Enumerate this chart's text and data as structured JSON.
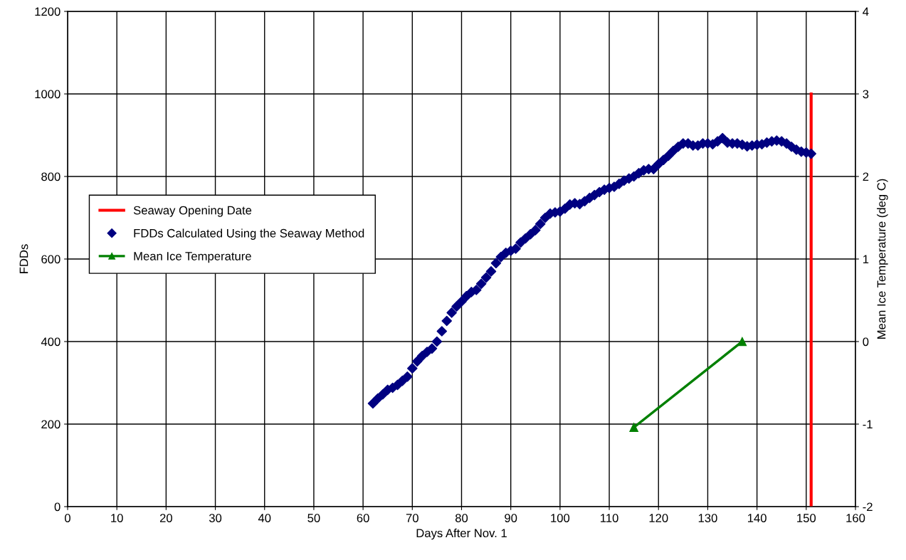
{
  "chart_data": {
    "type": "line",
    "xlabel": "Days After Nov. 1",
    "ylabel": "FDDs",
    "y2label": "Mean Ice Temperature (deg C)",
    "xlim": [
      0,
      160
    ],
    "xticks": [
      0,
      10,
      20,
      30,
      40,
      50,
      60,
      70,
      80,
      90,
      100,
      110,
      120,
      130,
      140,
      150,
      160
    ],
    "ylim": [
      0,
      1200
    ],
    "yticks": [
      0,
      200,
      400,
      600,
      800,
      1000,
      1200
    ],
    "y2lim": [
      -2,
      4
    ],
    "y2ticks": [
      {
        "value": -2,
        "label": "-2"
      },
      {
        "value": -1,
        "label": "-1"
      },
      0,
      1,
      2,
      3,
      4
    ],
    "grid": true,
    "legend": "left",
    "series": [
      {
        "name": "Seaway Opening Date",
        "color": "#ff0000",
        "marker": "none",
        "x": [
          151,
          151
        ],
        "values": [
          0,
          1000
        ]
      },
      {
        "name": "FDDs Calculated Using the Seaway Method",
        "type": "scatter",
        "color": "#000080",
        "marker": "diamond",
        "x": [
          62,
          63,
          64,
          65,
          66,
          67,
          68,
          69,
          70,
          71,
          72,
          73,
          74,
          75,
          76,
          77,
          78,
          79,
          80,
          81,
          82,
          83,
          84,
          85,
          86,
          87,
          88,
          89,
          90,
          91,
          92,
          93,
          94,
          95,
          96,
          97,
          98,
          99,
          100,
          101,
          102,
          103,
          104,
          105,
          106,
          107,
          108,
          109,
          110,
          111,
          112,
          113,
          114,
          115,
          116,
          117,
          118,
          119,
          120,
          121,
          122,
          123,
          124,
          125,
          126,
          127,
          128,
          129,
          130,
          131,
          132,
          133,
          134,
          135,
          136,
          137,
          138,
          139,
          140,
          141,
          142,
          143,
          144,
          145,
          146,
          147,
          148,
          149,
          150,
          151
        ],
        "values": [
          250,
          262,
          272,
          283,
          288,
          295,
          305,
          315,
          335,
          352,
          365,
          375,
          383,
          400,
          425,
          450,
          470,
          485,
          497,
          510,
          520,
          525,
          540,
          555,
          570,
          590,
          605,
          615,
          620,
          625,
          640,
          650,
          660,
          670,
          685,
          700,
          710,
          713,
          715,
          722,
          732,
          735,
          733,
          740,
          748,
          755,
          762,
          768,
          772,
          775,
          782,
          790,
          795,
          800,
          808,
          815,
          818,
          818,
          830,
          840,
          850,
          862,
          872,
          880,
          880,
          875,
          875,
          880,
          880,
          878,
          885,
          893,
          882,
          880,
          880,
          877,
          873,
          875,
          877,
          878,
          882,
          885,
          887,
          885,
          880,
          872,
          865,
          860,
          858,
          855
        ]
      },
      {
        "name": "Mean Ice Temperature",
        "axis": "y2",
        "color": "#008000",
        "marker": "triangle",
        "x": [
          115,
          137
        ],
        "values": [
          -1.04,
          0
        ]
      }
    ]
  }
}
